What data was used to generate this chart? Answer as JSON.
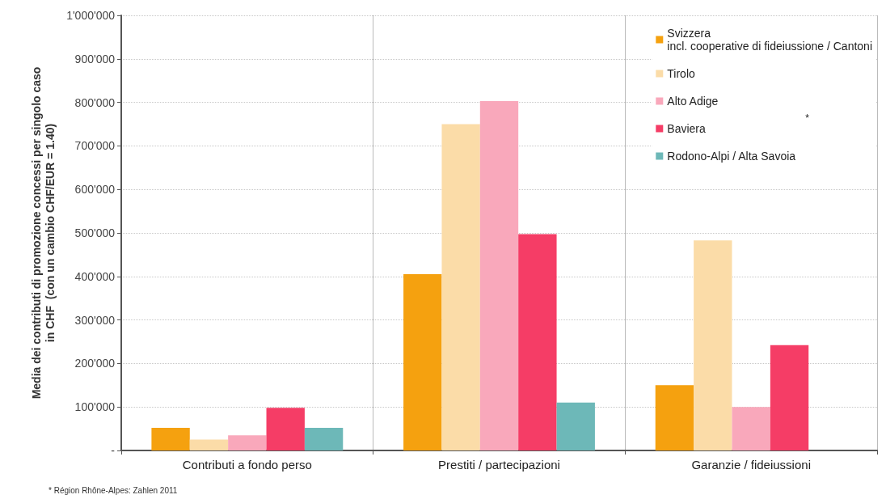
{
  "chart_data": {
    "type": "bar",
    "ylabel": "Media dei contributi di promozione concessi per singolo caso\nin CHF  (con un cambio CHF/EUR = 1.40)",
    "categories": [
      "Contributi a fondo perso",
      "Prestiti / partecipazioni",
      "Garanzie / fideiussioni"
    ],
    "series": [
      {
        "name": "Svizzera\nincl. cooperative di fideiussione / Cantoni",
        "color": "#f5a10f",
        "values": [
          52000,
          405000,
          150000
        ]
      },
      {
        "name": "Tirolo",
        "color": "#fbdca8",
        "values": [
          25000,
          750000,
          483000
        ]
      },
      {
        "name": "Alto Adige",
        "color": "#f9a8bb",
        "values": [
          35000,
          803000,
          100000
        ]
      },
      {
        "name": "Baviera",
        "color": "#f53d66",
        "values": [
          98000,
          497000,
          242000
        ]
      },
      {
        "name": "Rodono-Alpi / Alta Savoia",
        "color": "#6db8b8",
        "values": [
          52000,
          110000,
          null
        ]
      }
    ],
    "ylim": [
      0,
      1000000
    ],
    "yticks": [
      {
        "value": 0,
        "label": "-"
      },
      {
        "value": 100000,
        "label": "100'000"
      },
      {
        "value": 200000,
        "label": "200'000"
      },
      {
        "value": 300000,
        "label": "300'000"
      },
      {
        "value": 400000,
        "label": "400'000"
      },
      {
        "value": 500000,
        "label": "500'000"
      },
      {
        "value": 600000,
        "label": "600'000"
      },
      {
        "value": 700000,
        "label": "700'000"
      },
      {
        "value": 800000,
        "label": "800'000"
      },
      {
        "value": 900000,
        "label": "900'000"
      },
      {
        "value": 1000000,
        "label": "1'000'000"
      }
    ],
    "grid": "y",
    "legend": "top right",
    "annotations": [
      "*",
      "* Région Rhône-Alpes: Zahlen 2011"
    ]
  }
}
